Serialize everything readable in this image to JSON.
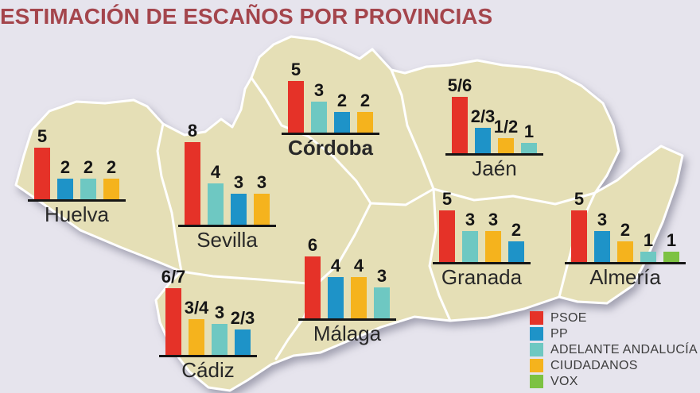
{
  "title": {
    "text": "ESTIMACIÓN DE ESCAÑOS POR PROVINCIAS",
    "color": "#a4454c"
  },
  "map_colors": {
    "land": "#e5dfb6",
    "province_border": "#ffffff",
    "background": "#e6e4ed",
    "axis": "#161616"
  },
  "parties": [
    {
      "name": "PSOE",
      "color": "#e53228"
    },
    {
      "name": "PP",
      "color": "#1e93c8"
    },
    {
      "name": "ADELANTE ANDALUCÍA",
      "color": "#6ec8c2"
    },
    {
      "name": "CIUDADANOS",
      "color": "#f5b31d"
    },
    {
      "name": "VOX",
      "color": "#7dc242"
    }
  ],
  "chart_data": {
    "type": "bar",
    "title": "ESTIMACIÓN DE ESCAÑOS POR PROVINCIAS",
    "legend_position": "bottom-right",
    "note": "one mini bar chart per province; labels with a slash are seat ranges, value holds the midpoint estimate",
    "provinces": [
      {
        "name": "Huelva",
        "bold": false,
        "bars": [
          {
            "party": "PSOE",
            "label": "5",
            "value": 5
          },
          {
            "party": "PP",
            "label": "2",
            "value": 2
          },
          {
            "party": "ADELANTE ANDALUCÍA",
            "label": "2",
            "value": 2
          },
          {
            "party": "CIUDADANOS",
            "label": "2",
            "value": 2
          }
        ]
      },
      {
        "name": "Sevilla",
        "bold": false,
        "bars": [
          {
            "party": "PSOE",
            "label": "8",
            "value": 8
          },
          {
            "party": "ADELANTE ANDALUCÍA",
            "label": "4",
            "value": 4
          },
          {
            "party": "PP",
            "label": "3",
            "value": 3
          },
          {
            "party": "CIUDADANOS",
            "label": "3",
            "value": 3
          }
        ]
      },
      {
        "name": "Córdoba",
        "bold": true,
        "bars": [
          {
            "party": "PSOE",
            "label": "5",
            "value": 5
          },
          {
            "party": "ADELANTE ANDALUCÍA",
            "label": "3",
            "value": 3
          },
          {
            "party": "PP",
            "label": "2",
            "value": 2
          },
          {
            "party": "CIUDADANOS",
            "label": "2",
            "value": 2
          }
        ]
      },
      {
        "name": "Jaén",
        "bold": false,
        "bars": [
          {
            "party": "PSOE",
            "label": "5/6",
            "value": 5.5
          },
          {
            "party": "PP",
            "label": "2/3",
            "value": 2.5
          },
          {
            "party": "CIUDADANOS",
            "label": "1/2",
            "value": 1.5
          },
          {
            "party": "ADELANTE ANDALUCÍA",
            "label": "1",
            "value": 1
          }
        ]
      },
      {
        "name": "Granada",
        "bold": false,
        "bars": [
          {
            "party": "PSOE",
            "label": "5",
            "value": 5
          },
          {
            "party": "ADELANTE ANDALUCÍA",
            "label": "3",
            "value": 3
          },
          {
            "party": "CIUDADANOS",
            "label": "3",
            "value": 3
          },
          {
            "party": "PP",
            "label": "2",
            "value": 2
          }
        ]
      },
      {
        "name": "Almería",
        "bold": false,
        "bars": [
          {
            "party": "PSOE",
            "label": "5",
            "value": 5
          },
          {
            "party": "PP",
            "label": "3",
            "value": 3
          },
          {
            "party": "CIUDADANOS",
            "label": "2",
            "value": 2
          },
          {
            "party": "ADELANTE ANDALUCÍA",
            "label": "1",
            "value": 1
          },
          {
            "party": "VOX",
            "label": "1",
            "value": 1
          }
        ]
      },
      {
        "name": "Málaga",
        "bold": false,
        "bars": [
          {
            "party": "PSOE",
            "label": "6",
            "value": 6
          },
          {
            "party": "PP",
            "label": "4",
            "value": 4
          },
          {
            "party": "CIUDADANOS",
            "label": "4",
            "value": 4
          },
          {
            "party": "ADELANTE ANDALUCÍA",
            "label": "3",
            "value": 3
          }
        ]
      },
      {
        "name": "Cádiz",
        "bold": false,
        "bars": [
          {
            "party": "PSOE",
            "label": "6/7",
            "value": 6.5
          },
          {
            "party": "CIUDADANOS",
            "label": "3/4",
            "value": 3.5
          },
          {
            "party": "ADELANTE ANDALUCÍA",
            "label": "3",
            "value": 3
          },
          {
            "party": "PP",
            "label": "2/3",
            "value": 2.5
          }
        ]
      }
    ]
  }
}
